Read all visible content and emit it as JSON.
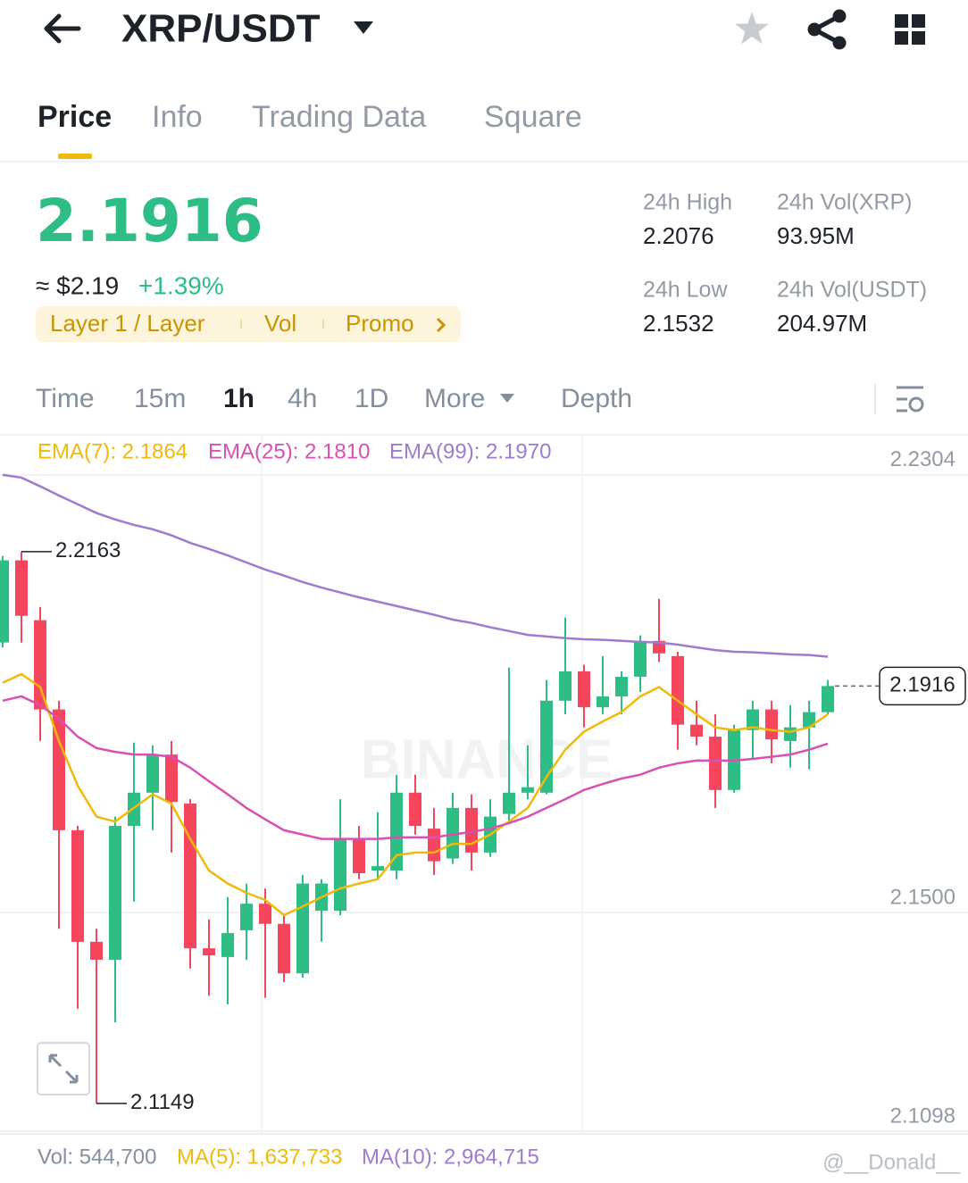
{
  "header": {
    "pair": "XRP/USDT"
  },
  "tabs": {
    "items": [
      "Price",
      "Info",
      "Trading Data",
      "Square"
    ],
    "active": 0
  },
  "ticker": {
    "price": "2.1916",
    "usd": "≈ $2.19",
    "change": "+1.39%",
    "tags": [
      "Layer 1 / Layer",
      "Vol",
      "Promo"
    ]
  },
  "stats": [
    {
      "label": "24h High",
      "value": "2.2076"
    },
    {
      "label": "24h Vol(XRP)",
      "value": "93.95M"
    },
    {
      "label": "24h Low",
      "value": "2.1532"
    },
    {
      "label": "24h Vol(USDT)",
      "value": "204.97M"
    }
  ],
  "intervals": {
    "items": [
      "Time",
      "15m",
      "1h",
      "4h",
      "1D",
      "More",
      "Depth"
    ],
    "active": 2
  },
  "chart_watermark": "BINANCE",
  "chart_data": {
    "type": "candlestick",
    "up_color": "#2ebd85",
    "down_color": "#f6465d",
    "ylim": [
      2.1093,
      2.2376
    ],
    "yticks": [
      2.2304,
      {
        "value": 2.15,
        "label": "2.1500"
      },
      2.1098
    ],
    "grid": true,
    "open": [
      2.1996,
      2.2147,
      2.2037,
      2.1873,
      2.1651,
      2.1446,
      2.1413,
      2.1659,
      2.172,
      2.179,
      2.17,
      2.1434,
      2.1418,
      2.1467,
      2.1516,
      2.1479,
      2.1388,
      2.1503,
      2.1503,
      2.1635,
      2.1577,
      2.1577,
      2.172,
      2.1654,
      2.1599,
      2.1692,
      2.161,
      2.1681,
      2.172,
      2.172,
      2.1889,
      2.1943,
      2.1877,
      2.1897,
      2.1933,
      2.1999,
      2.1971,
      2.1845,
      2.1823,
      2.1725,
      2.1835,
      2.1873,
      2.1815,
      2.184,
      2.1868
    ],
    "high": [
      2.2155,
      2.2163,
      2.2061,
      2.1889,
      2.1659,
      2.147,
      2.1676,
      2.1812,
      2.1807,
      2.1815,
      2.1708,
      2.1487,
      2.1528,
      2.1553,
      2.1544,
      2.1495,
      2.1569,
      2.1561,
      2.1708,
      2.1659,
      2.1684,
      2.1753,
      2.1753,
      2.1692,
      2.172,
      2.1717,
      2.1708,
      2.195,
      2.1807,
      2.1927,
      2.2042,
      2.1955,
      2.1971,
      2.1943,
      2.2009,
      2.2076,
      2.1979,
      2.1889,
      2.1864,
      2.1845,
      2.1889,
      2.1889,
      2.1881,
      2.1889,
      2.1927
    ],
    "low": [
      2.1987,
      2.1996,
      2.1815,
      2.147,
      2.1323,
      2.1149,
      2.1298,
      2.152,
      2.1651,
      2.161,
      2.1397,
      2.1347,
      2.1331,
      2.1413,
      2.1343,
      2.1372,
      2.138,
      2.1446,
      2.1495,
      2.1561,
      2.1561,
      2.1561,
      2.1643,
      2.1569,
      2.1589,
      2.1577,
      2.1602,
      2.1667,
      2.1708,
      2.1717,
      2.1864,
      2.184,
      2.1864,
      2.1864,
      2.1905,
      2.196,
      2.1799,
      2.1807,
      2.1692,
      2.172,
      2.1782,
      2.1774,
      2.1766,
      2.1763,
      2.1864
    ],
    "close": [
      2.2147,
      2.2045,
      2.1873,
      2.1651,
      2.1446,
      2.1413,
      2.1659,
      2.172,
      2.179,
      2.1703,
      2.1434,
      2.1421,
      2.1462,
      2.1516,
      2.1479,
      2.1388,
      2.1553,
      2.1553,
      2.1635,
      2.1572,
      2.1585,
      2.172,
      2.1659,
      2.1594,
      2.1692,
      2.161,
      2.1676,
      2.172,
      2.173,
      2.1889,
      2.1943,
      2.1877,
      2.1897,
      2.1933,
      2.1999,
      2.1976,
      2.1845,
      2.1823,
      2.1725,
      2.1835,
      2.1873,
      2.1818,
      2.184,
      2.1868,
      2.1916
    ],
    "lines": [
      {
        "label": "EMA(7): 2.1864",
        "color": "#f0b90b",
        "values": [
          2.1922,
          2.1938,
          2.1914,
          2.1815,
          2.1733,
          2.1676,
          2.1667,
          2.1692,
          2.1717,
          2.17,
          2.1635,
          2.1577,
          2.1553,
          2.1536,
          2.1523,
          2.1495,
          2.1511,
          2.1528,
          2.1544,
          2.1553,
          2.1561,
          2.1605,
          2.161,
          2.161,
          2.1626,
          2.1626,
          2.1643,
          2.1667,
          2.1692,
          2.1749,
          2.1799,
          2.1832,
          2.1851,
          2.1868,
          2.1897,
          2.1914,
          2.1889,
          2.1864,
          2.184,
          2.1835,
          2.184,
          2.1835,
          2.1832,
          2.184,
          2.1864
        ]
      },
      {
        "label": "EMA(25): 2.1810",
        "color": "#d94fb3",
        "values": [
          2.1889,
          2.1897,
          2.1881,
          2.1856,
          2.1823,
          2.1802,
          2.1795,
          2.179,
          2.179,
          2.1786,
          2.1766,
          2.1741,
          2.1717,
          2.1692,
          2.1671,
          2.1651,
          2.1643,
          2.1635,
          2.1635,
          2.1635,
          2.1635,
          2.1638,
          2.1638,
          2.1638,
          2.1643,
          2.1648,
          2.1654,
          2.1664,
          2.1676,
          2.1692,
          2.1708,
          2.1725,
          2.1736,
          2.1746,
          2.1753,
          2.1766,
          2.1774,
          2.1779,
          2.1779,
          2.1779,
          2.1782,
          2.1786,
          2.179,
          2.1799,
          2.181
        ]
      },
      {
        "label": "EMA(99): 2.1970",
        "color": "#9c7bd0",
        "values": [
          2.2304,
          2.2299,
          2.2283,
          2.2266,
          2.225,
          2.2234,
          2.2222,
          2.2212,
          2.2204,
          2.2193,
          2.2179,
          2.2168,
          2.2156,
          2.2143,
          2.213,
          2.2119,
          2.2107,
          2.2097,
          2.2088,
          2.2079,
          2.2071,
          2.2063,
          2.2055,
          2.2047,
          2.2038,
          2.2032,
          2.2024,
          2.2017,
          2.201,
          2.2007,
          2.2004,
          2.2002,
          2.2001,
          2.1999,
          2.1997,
          2.1996,
          2.1992,
          2.1987,
          2.1982,
          2.1979,
          2.1978,
          2.1976,
          2.1974,
          2.1973,
          2.197
        ]
      }
    ],
    "annotations": [
      {
        "value": 2.2163,
        "at": "high"
      },
      {
        "value": 2.1149,
        "at": "low"
      }
    ],
    "last": 2.1916
  },
  "volume": [
    {
      "text": "Vol: 544,700",
      "color": "#848e9c"
    },
    {
      "text": "MA(5): 1,637,733",
      "color": "#f0b90b"
    },
    {
      "text": "MA(10): 2,964,715",
      "color": "#9c7bd0"
    }
  ],
  "watermark": "@__Donald__"
}
